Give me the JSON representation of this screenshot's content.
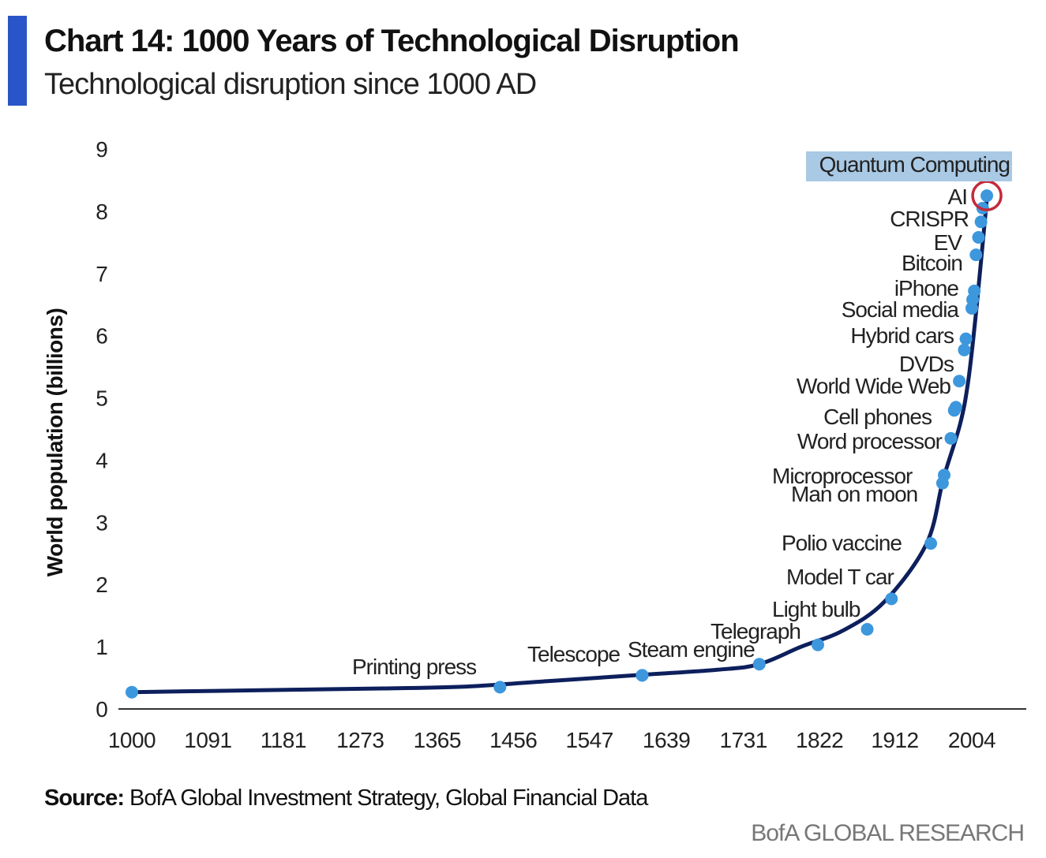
{
  "header": {
    "title": "Chart 14: 1000 Years of Technological Disruption",
    "subtitle": "Technological disruption since 1000 AD"
  },
  "chart_data": {
    "type": "line",
    "title": "Chart 14: 1000 Years of Technological Disruption",
    "subtitle": "Technological disruption since 1000 AD",
    "xlabel": "",
    "ylabel": "World population (billions)",
    "xlim": [
      1000,
      2070
    ],
    "ylim": [
      0,
      9
    ],
    "x_ticks": [
      1000,
      1091,
      1181,
      1273,
      1365,
      1456,
      1547,
      1639,
      1731,
      1822,
      1912,
      2004
    ],
    "y_ticks": [
      0,
      1,
      2,
      3,
      4,
      5,
      6,
      7,
      8,
      9
    ],
    "grid": false,
    "line_color": "#0d1f5c",
    "marker_color": "#3d97dd",
    "highlight_color": "#c42a3a",
    "label_highlight_color": "#a9c9e4",
    "line": {
      "x": [
        1000,
        1100,
        1200,
        1300,
        1400,
        1500,
        1600,
        1700,
        1750,
        1800,
        1850,
        1900,
        1950,
        1970,
        1990,
        2000,
        2010,
        2022
      ],
      "y": [
        0.27,
        0.29,
        0.31,
        0.33,
        0.36,
        0.45,
        0.54,
        0.63,
        0.72,
        1.0,
        1.26,
        1.73,
        2.66,
        3.7,
        4.58,
        5.3,
        6.5,
        8.2
      ]
    },
    "markers": [
      {
        "label": "",
        "x": 1000,
        "y": 0.27
      },
      {
        "label": "Printing press",
        "x": 1440,
        "y": 0.35
      },
      {
        "label": "Telescope",
        "x": 1610,
        "y": 0.54
      },
      {
        "label": "Steam engine",
        "x": 1610,
        "y": 0.54
      },
      {
        "label": "Telegraph",
        "x": 1750,
        "y": 0.72
      },
      {
        "label": "",
        "x": 1820,
        "y": 1.03
      },
      {
        "label": "Light bulb",
        "x": 1879,
        "y": 1.28
      },
      {
        "label": "Model T car",
        "x": 1908,
        "y": 1.77
      },
      {
        "label": "Polio vaccine",
        "x": 1955,
        "y": 2.66
      },
      {
        "label": "Microprocessor",
        "x": 1971,
        "y": 3.76
      },
      {
        "label": "Man on moon",
        "x": 1969,
        "y": 3.63
      },
      {
        "label": "Word processor",
        "x": 1979,
        "y": 4.35
      },
      {
        "label": "Cell phones",
        "x": 1983,
        "y": 4.8
      },
      {
        "label": "",
        "x": 1985,
        "y": 4.85
      },
      {
        "label": "World Wide Web",
        "x": 1989,
        "y": 5.27
      },
      {
        "label": "DVDs",
        "x": 1995,
        "y": 5.77
      },
      {
        "label": "Hybrid cars",
        "x": 1997,
        "y": 5.95
      },
      {
        "label": "Social media",
        "x": 2004,
        "y": 6.44
      },
      {
        "label": "",
        "x": 2005,
        "y": 6.58
      },
      {
        "label": "iPhone",
        "x": 2007,
        "y": 6.72
      },
      {
        "label": "Bitcoin",
        "x": 2009,
        "y": 7.3
      },
      {
        "label": "EV",
        "x": 2012,
        "y": 7.58
      },
      {
        "label": "CRISPR",
        "x": 2015,
        "y": 7.83
      },
      {
        "label": "",
        "x": 2017,
        "y": 8.05
      },
      {
        "label": "AI",
        "x": 2022,
        "y": 8.25,
        "highlight": true
      },
      {
        "label": "Quantum Computing",
        "x": 2022,
        "y": 8.9,
        "label_highlight": true
      }
    ]
  },
  "footer": {
    "source_prefix": "Source:",
    "source_text": " BofA Global Investment Strategy, Global Financial Data",
    "brand": "BofA GLOBAL RESEARCH"
  }
}
